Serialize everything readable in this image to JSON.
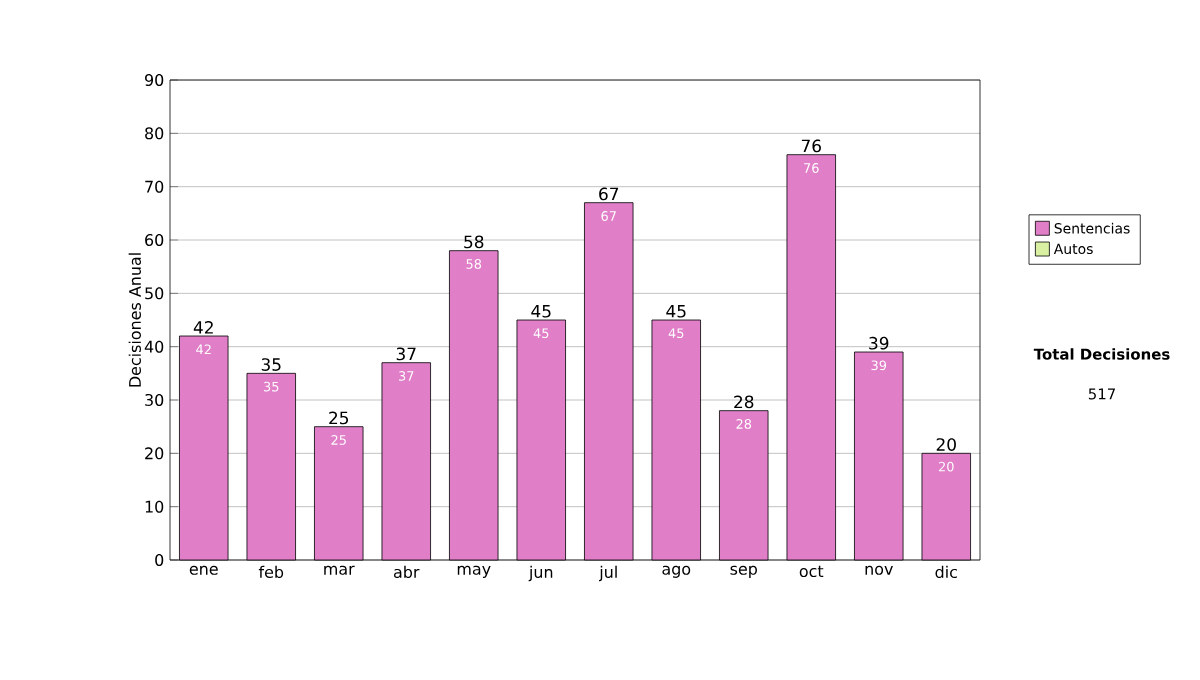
{
  "chart_data": {
    "type": "bar",
    "ylabel": "Decisiones Anual",
    "categories": [
      "ene",
      "feb",
      "mar",
      "abr",
      "may",
      "jun",
      "jul",
      "ago",
      "sep",
      "oct",
      "nov",
      "dic"
    ],
    "stacked": true,
    "series": [
      {
        "name": "Sentencias",
        "color": "#e07fc8",
        "values": [
          42,
          35,
          25,
          37,
          58,
          45,
          67,
          45,
          28,
          76,
          39,
          20
        ]
      },
      {
        "name": "Autos",
        "color": "#d9f0a3",
        "values": [
          null,
          null,
          null,
          null,
          null,
          null,
          null,
          null,
          null,
          null,
          null,
          null
        ]
      }
    ],
    "totals": [
      "42",
      "35",
      "25",
      "37",
      "58",
      "45",
      "67",
      "45",
      "28",
      "76",
      "39",
      "20"
    ],
    "data_labels": true,
    "ylim": [
      0,
      90
    ],
    "yticks": [
      0,
      10,
      20,
      30,
      40,
      50,
      60,
      70,
      80,
      90
    ],
    "grid": "y",
    "legend": "right",
    "annotations": [
      "Total Decisiones",
      "517"
    ]
  }
}
